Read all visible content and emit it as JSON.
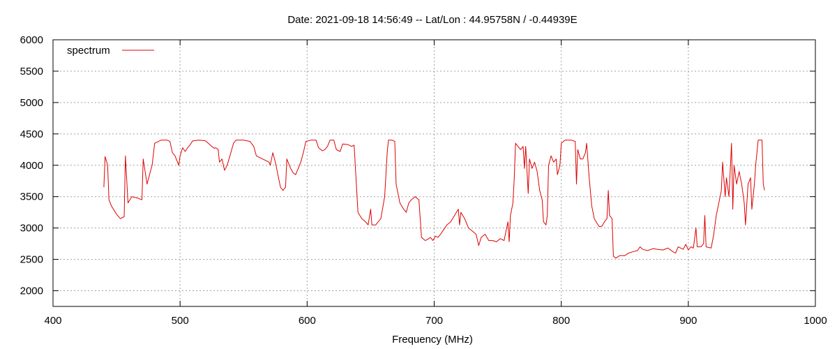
{
  "chart_data": {
    "type": "line",
    "title": "Date: 2021-09-18 14:56:49  --  Lat/Lon : 44.95758N / -0.44939E",
    "xlabel": "Frequency (MHz)",
    "ylabel": "",
    "xlim": [
      400,
      1000
    ],
    "ylim": [
      1750,
      6000
    ],
    "x_ticks": [
      400,
      500,
      600,
      700,
      800,
      900,
      1000
    ],
    "y_ticks": [
      2000,
      2500,
      3000,
      3500,
      4000,
      4500,
      5000,
      5500,
      6000
    ],
    "grid": true,
    "legend_position": "top-left",
    "series": [
      {
        "name": "spectrum",
        "color": "#dd0000",
        "points": [
          [
            440,
            3650
          ],
          [
            441,
            4140
          ],
          [
            443,
            4000
          ],
          [
            444,
            3450
          ],
          [
            446,
            3350
          ],
          [
            450,
            3220
          ],
          [
            453,
            3150
          ],
          [
            456,
            3180
          ],
          [
            457,
            4150
          ],
          [
            459,
            3400
          ],
          [
            462,
            3500
          ],
          [
            466,
            3480
          ],
          [
            470,
            3450
          ],
          [
            471,
            4100
          ],
          [
            474,
            3700
          ],
          [
            476,
            3850
          ],
          [
            478,
            4000
          ],
          [
            480,
            4350
          ],
          [
            485,
            4400
          ],
          [
            490,
            4400
          ],
          [
            492,
            4380
          ],
          [
            494,
            4200
          ],
          [
            496,
            4150
          ],
          [
            498,
            4050
          ],
          [
            499,
            4000
          ],
          [
            500,
            4150
          ],
          [
            502,
            4280
          ],
          [
            504,
            4220
          ],
          [
            506,
            4280
          ],
          [
            508,
            4330
          ],
          [
            510,
            4390
          ],
          [
            515,
            4400
          ],
          [
            520,
            4390
          ],
          [
            525,
            4300
          ],
          [
            527,
            4270
          ],
          [
            528,
            4280
          ],
          [
            530,
            4250
          ],
          [
            531,
            4050
          ],
          [
            533,
            4100
          ],
          [
            535,
            3920
          ],
          [
            537,
            4000
          ],
          [
            540,
            4200
          ],
          [
            542,
            4350
          ],
          [
            544,
            4400
          ],
          [
            550,
            4400
          ],
          [
            555,
            4380
          ],
          [
            558,
            4300
          ],
          [
            560,
            4150
          ],
          [
            565,
            4100
          ],
          [
            570,
            4050
          ],
          [
            571,
            4000
          ],
          [
            573,
            4200
          ],
          [
            575,
            4050
          ],
          [
            577,
            3850
          ],
          [
            579,
            3650
          ],
          [
            581,
            3600
          ],
          [
            583,
            3650
          ],
          [
            584,
            4100
          ],
          [
            587,
            3950
          ],
          [
            589,
            3880
          ],
          [
            591,
            3850
          ],
          [
            593,
            3950
          ],
          [
            595,
            4050
          ],
          [
            597,
            4200
          ],
          [
            599,
            4380
          ],
          [
            603,
            4400
          ],
          [
            607,
            4400
          ],
          [
            609,
            4280
          ],
          [
            612,
            4230
          ],
          [
            614,
            4250
          ],
          [
            616,
            4300
          ],
          [
            618,
            4400
          ],
          [
            621,
            4400
          ],
          [
            623,
            4250
          ],
          [
            626,
            4220
          ],
          [
            628,
            4340
          ],
          [
            632,
            4330
          ],
          [
            635,
            4300
          ],
          [
            637,
            4320
          ],
          [
            640,
            3250
          ],
          [
            643,
            3150
          ],
          [
            646,
            3100
          ],
          [
            648,
            3050
          ],
          [
            650,
            3300
          ],
          [
            651,
            3050
          ],
          [
            654,
            3050
          ],
          [
            656,
            3100
          ],
          [
            658,
            3150
          ],
          [
            661,
            3500
          ],
          [
            663,
            4200
          ],
          [
            664,
            4400
          ],
          [
            667,
            4400
          ],
          [
            669,
            4380
          ],
          [
            670,
            3700
          ],
          [
            673,
            3400
          ],
          [
            676,
            3300
          ],
          [
            678,
            3250
          ],
          [
            680,
            3400
          ],
          [
            682,
            3450
          ],
          [
            685,
            3500
          ],
          [
            688,
            3450
          ],
          [
            690,
            2850
          ],
          [
            693,
            2800
          ],
          [
            695,
            2820
          ],
          [
            697,
            2850
          ],
          [
            699,
            2800
          ],
          [
            701,
            2870
          ],
          [
            703,
            2850
          ],
          [
            705,
            2900
          ],
          [
            707,
            2960
          ],
          [
            710,
            3050
          ],
          [
            713,
            3100
          ],
          [
            716,
            3200
          ],
          [
            719,
            3300
          ],
          [
            720,
            3050
          ],
          [
            721,
            3250
          ],
          [
            724,
            3150
          ],
          [
            727,
            3000
          ],
          [
            730,
            2950
          ],
          [
            733,
            2900
          ],
          [
            735,
            2720
          ],
          [
            737,
            2850
          ],
          [
            740,
            2900
          ],
          [
            743,
            2800
          ],
          [
            746,
            2800
          ],
          [
            749,
            2780
          ],
          [
            752,
            2830
          ],
          [
            755,
            2800
          ],
          [
            758,
            3100
          ],
          [
            759,
            2780
          ],
          [
            760,
            3200
          ],
          [
            762,
            3400
          ],
          [
            763,
            3800
          ],
          [
            764,
            4350
          ],
          [
            766,
            4300
          ],
          [
            768,
            4250
          ],
          [
            770,
            4300
          ],
          [
            771,
            3950
          ],
          [
            772,
            4300
          ],
          [
            774,
            3550
          ],
          [
            775,
            4100
          ],
          [
            777,
            3950
          ],
          [
            779,
            4050
          ],
          [
            781,
            3900
          ],
          [
            783,
            3600
          ],
          [
            785,
            3450
          ],
          [
            786,
            3100
          ],
          [
            788,
            3050
          ],
          [
            789,
            3200
          ],
          [
            790,
            4000
          ],
          [
            792,
            4150
          ],
          [
            794,
            4050
          ],
          [
            796,
            4100
          ],
          [
            797,
            3850
          ],
          [
            799,
            4000
          ],
          [
            800,
            4350
          ],
          [
            803,
            4400
          ],
          [
            808,
            4400
          ],
          [
            811,
            4380
          ],
          [
            812,
            3700
          ],
          [
            813,
            4250
          ],
          [
            815,
            4100
          ],
          [
            817,
            4100
          ],
          [
            819,
            4200
          ],
          [
            820,
            4350
          ],
          [
            822,
            3800
          ],
          [
            824,
            3350
          ],
          [
            826,
            3150
          ],
          [
            828,
            3080
          ],
          [
            830,
            3020
          ],
          [
            832,
            3030
          ],
          [
            834,
            3100
          ],
          [
            836,
            3150
          ],
          [
            837,
            3600
          ],
          [
            838,
            3200
          ],
          [
            840,
            3150
          ],
          [
            841,
            2550
          ],
          [
            843,
            2520
          ],
          [
            846,
            2560
          ],
          [
            850,
            2560
          ],
          [
            853,
            2600
          ],
          [
            856,
            2620
          ],
          [
            860,
            2640
          ],
          [
            862,
            2700
          ],
          [
            864,
            2660
          ],
          [
            868,
            2640
          ],
          [
            872,
            2670
          ],
          [
            876,
            2660
          ],
          [
            880,
            2650
          ],
          [
            884,
            2680
          ],
          [
            888,
            2620
          ],
          [
            890,
            2600
          ],
          [
            892,
            2700
          ],
          [
            894,
            2680
          ],
          [
            896,
            2660
          ],
          [
            898,
            2740
          ],
          [
            900,
            2650
          ],
          [
            902,
            2700
          ],
          [
            904,
            2680
          ],
          [
            906,
            3000
          ],
          [
            907,
            2700
          ],
          [
            910,
            2700
          ],
          [
            912,
            2750
          ],
          [
            913,
            3200
          ],
          [
            914,
            2700
          ],
          [
            918,
            2680
          ],
          [
            920,
            2900
          ],
          [
            922,
            3200
          ],
          [
            924,
            3400
          ],
          [
            926,
            3600
          ],
          [
            927,
            4050
          ],
          [
            929,
            3500
          ],
          [
            930,
            3800
          ],
          [
            932,
            3500
          ],
          [
            934,
            4350
          ],
          [
            935,
            3300
          ],
          [
            936,
            4000
          ],
          [
            938,
            3700
          ],
          [
            940,
            3900
          ],
          [
            942,
            3700
          ],
          [
            944,
            3400
          ],
          [
            945,
            3050
          ],
          [
            947,
            3700
          ],
          [
            949,
            3800
          ],
          [
            950,
            3300
          ],
          [
            952,
            3700
          ],
          [
            953,
            4000
          ],
          [
            954,
            4200
          ],
          [
            955,
            4400
          ],
          [
            958,
            4400
          ],
          [
            959,
            3700
          ],
          [
            960,
            3600
          ]
        ]
      }
    ]
  }
}
